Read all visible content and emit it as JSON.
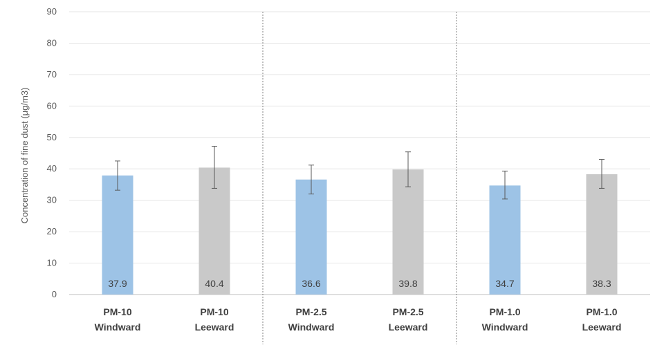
{
  "chart_data": {
    "type": "bar",
    "title": "",
    "xlabel": "",
    "ylabel": "Concentration of fine dust (μg/m3)",
    "ylim": [
      0,
      90
    ],
    "yticks": [
      0,
      10,
      20,
      30,
      40,
      50,
      60,
      70,
      80,
      90
    ],
    "grid": true,
    "legend": "none",
    "categories": [
      [
        "PM-10",
        "Windward"
      ],
      [
        "PM-10",
        "Leeward"
      ],
      [
        "PM-2.5",
        "Windward"
      ],
      [
        "PM-2.5",
        "Leeward"
      ],
      [
        "PM-1.0",
        "Windward"
      ],
      [
        "PM-1.0",
        "Leeward"
      ]
    ],
    "values": [
      37.9,
      40.4,
      36.6,
      39.8,
      34.7,
      38.3
    ],
    "data_labels": [
      "37.9",
      "40.4",
      "36.6",
      "39.8",
      "34.7",
      "38.3"
    ],
    "error_bars": [
      [
        33.2,
        42.5
      ],
      [
        33.8,
        47.2
      ],
      [
        32.0,
        41.2
      ],
      [
        34.3,
        45.4
      ],
      [
        30.4,
        39.3
      ],
      [
        33.8,
        43.0
      ]
    ],
    "colors": [
      "#9DC3E6",
      "#C9C9C9",
      "#9DC3E6",
      "#C9C9C9",
      "#9DC3E6",
      "#C9C9C9"
    ],
    "group_separators_after": [
      1,
      3
    ]
  }
}
